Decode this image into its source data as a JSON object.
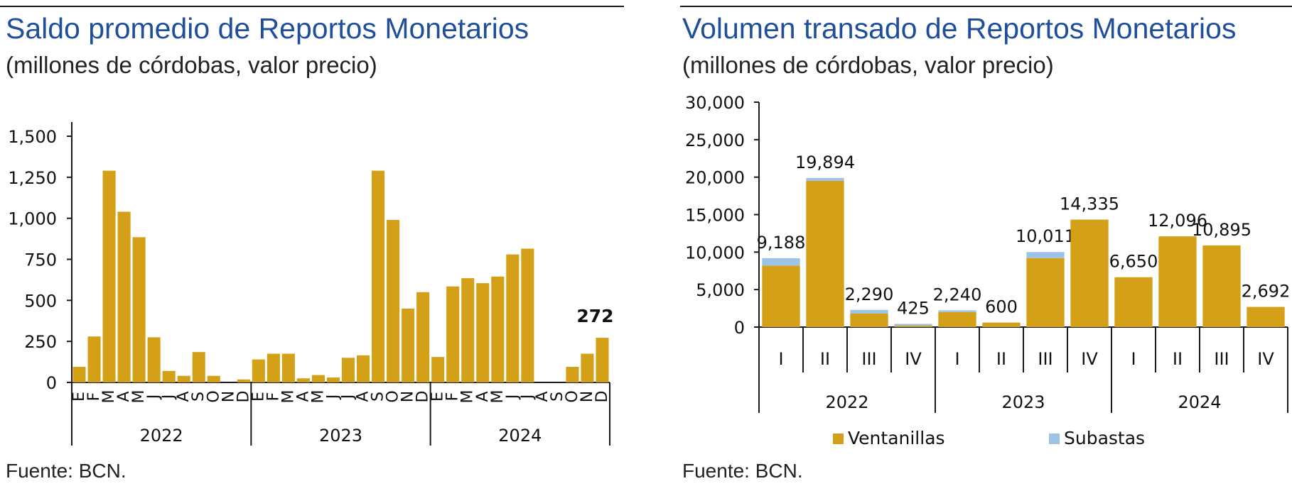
{
  "colors": {
    "title": "#1f4e9a",
    "gold": "#d4a017",
    "blue": "#9dc3e6",
    "axis": "#1a1a1a"
  },
  "charts": {
    "left": {
      "title": "Saldo promedio de Reportos Monetarios",
      "subtitle": "(millones de córdobas, valor precio)",
      "source": "Fuente: BCN."
    },
    "right": {
      "title": "Volumen transado de Reportos Monetarios",
      "subtitle": "(millones de córdobas, valor precio)",
      "source": "Fuente: BCN."
    }
  },
  "chart_data": [
    {
      "type": "bar",
      "title": "Saldo promedio de Reportos Monetarios",
      "subtitle": "(millones de córdobas, valor precio)",
      "ylim": [
        0,
        1500
      ],
      "yticks": [
        0,
        250,
        500,
        750,
        1000,
        1250,
        1500
      ],
      "ytick_labels": [
        "0",
        "250",
        "500",
        "750",
        "1,000",
        "1,250",
        "1,500"
      ],
      "month_labels": [
        "E",
        "F",
        "M",
        "A",
        "M",
        "J",
        "J",
        "A",
        "S",
        "O",
        "N",
        "D"
      ],
      "years": [
        "2022",
        "2023",
        "2024"
      ],
      "values": [
        95,
        280,
        1290,
        1040,
        885,
        275,
        70,
        40,
        185,
        40,
        0,
        18,
        140,
        175,
        175,
        25,
        45,
        30,
        150,
        165,
        1290,
        990,
        450,
        550,
        155,
        585,
        635,
        605,
        645,
        780,
        815,
        0,
        0,
        95,
        175,
        272
      ],
      "annotation": "272",
      "grid": false
    },
    {
      "type": "bar",
      "stacked": true,
      "title": "Volumen transado de Reportos Monetarios",
      "subtitle": "(millones de córdobas, valor precio)",
      "ylim": [
        0,
        30000
      ],
      "yticks": [
        0,
        5000,
        10000,
        15000,
        20000,
        25000,
        30000
      ],
      "ytick_labels": [
        "0",
        "5,000",
        "10,000",
        "15,000",
        "20,000",
        "25,000",
        "30,000"
      ],
      "quarters": [
        "I",
        "II",
        "III",
        "IV",
        "I",
        "II",
        "III",
        "IV",
        "I",
        "II",
        "III",
        "IV"
      ],
      "years": [
        "2022",
        "2023",
        "2024"
      ],
      "series": [
        {
          "name": "Ventanillas",
          "values": [
            8200,
            19500,
            1800,
            200,
            2000,
            600,
            9200,
            14335,
            6650,
            12096,
            10895,
            2692
          ]
        },
        {
          "name": "Subastas",
          "values": [
            988,
            394,
            490,
            225,
            240,
            0,
            811,
            0,
            0,
            0,
            0,
            0
          ]
        }
      ],
      "totals": [
        "9,188",
        "19,894",
        "2,290",
        "425",
        "2,240",
        "600",
        "10,011",
        "14,335",
        "6,650",
        "12,096",
        "10,895",
        "2,692"
      ],
      "legend": "bottom",
      "grid": false
    }
  ]
}
